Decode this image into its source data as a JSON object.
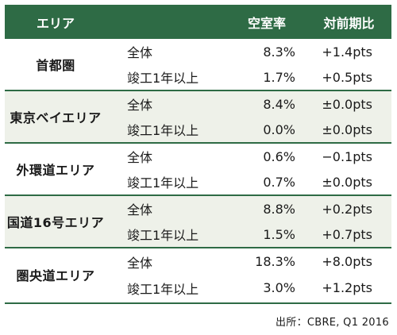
{
  "header": {
    "area": "エリア",
    "type": "",
    "rate": "空室率",
    "diff": "対前期比"
  },
  "groups": [
    {
      "area": "首都圏",
      "rows": [
        {
          "type": "全体",
          "rate": "8.3%",
          "diff": "+1.4pts"
        },
        {
          "type": "竣工1年以上",
          "rate": "1.7%",
          "diff": "+0.5pts"
        }
      ]
    },
    {
      "area": "東京ベイエリア",
      "rows": [
        {
          "type": "全体",
          "rate": "8.4%",
          "diff": "±0.0pts"
        },
        {
          "type": "竣工1年以上",
          "rate": "0.0%",
          "diff": "±0.0pts"
        }
      ]
    },
    {
      "area": "外環道エリア",
      "rows": [
        {
          "type": "全体",
          "rate": "0.6%",
          "diff": "−0.1pts"
        },
        {
          "type": "竣工1年以上",
          "rate": "0.7%",
          "diff": "±0.0pts"
        }
      ]
    },
    {
      "area": "国道16号エリア",
      "rows": [
        {
          "type": "全体",
          "rate": "8.8%",
          "diff": "+0.2pts"
        },
        {
          "type": "竣工1年以上",
          "rate": "1.5%",
          "diff": "+0.7pts"
        }
      ]
    },
    {
      "area": "圏央道エリア",
      "rows": [
        {
          "type": "全体",
          "rate": "18.3%",
          "diff": "+8.0pts"
        },
        {
          "type": "竣工1年以上",
          "rate": "3.0%",
          "diff": "+1.2pts"
        }
      ]
    }
  ],
  "source": "出所：CBRE, Q1 2016",
  "colors": {
    "header_bg": "#2e6b45",
    "alt_row_bg": "#eef1e9"
  }
}
